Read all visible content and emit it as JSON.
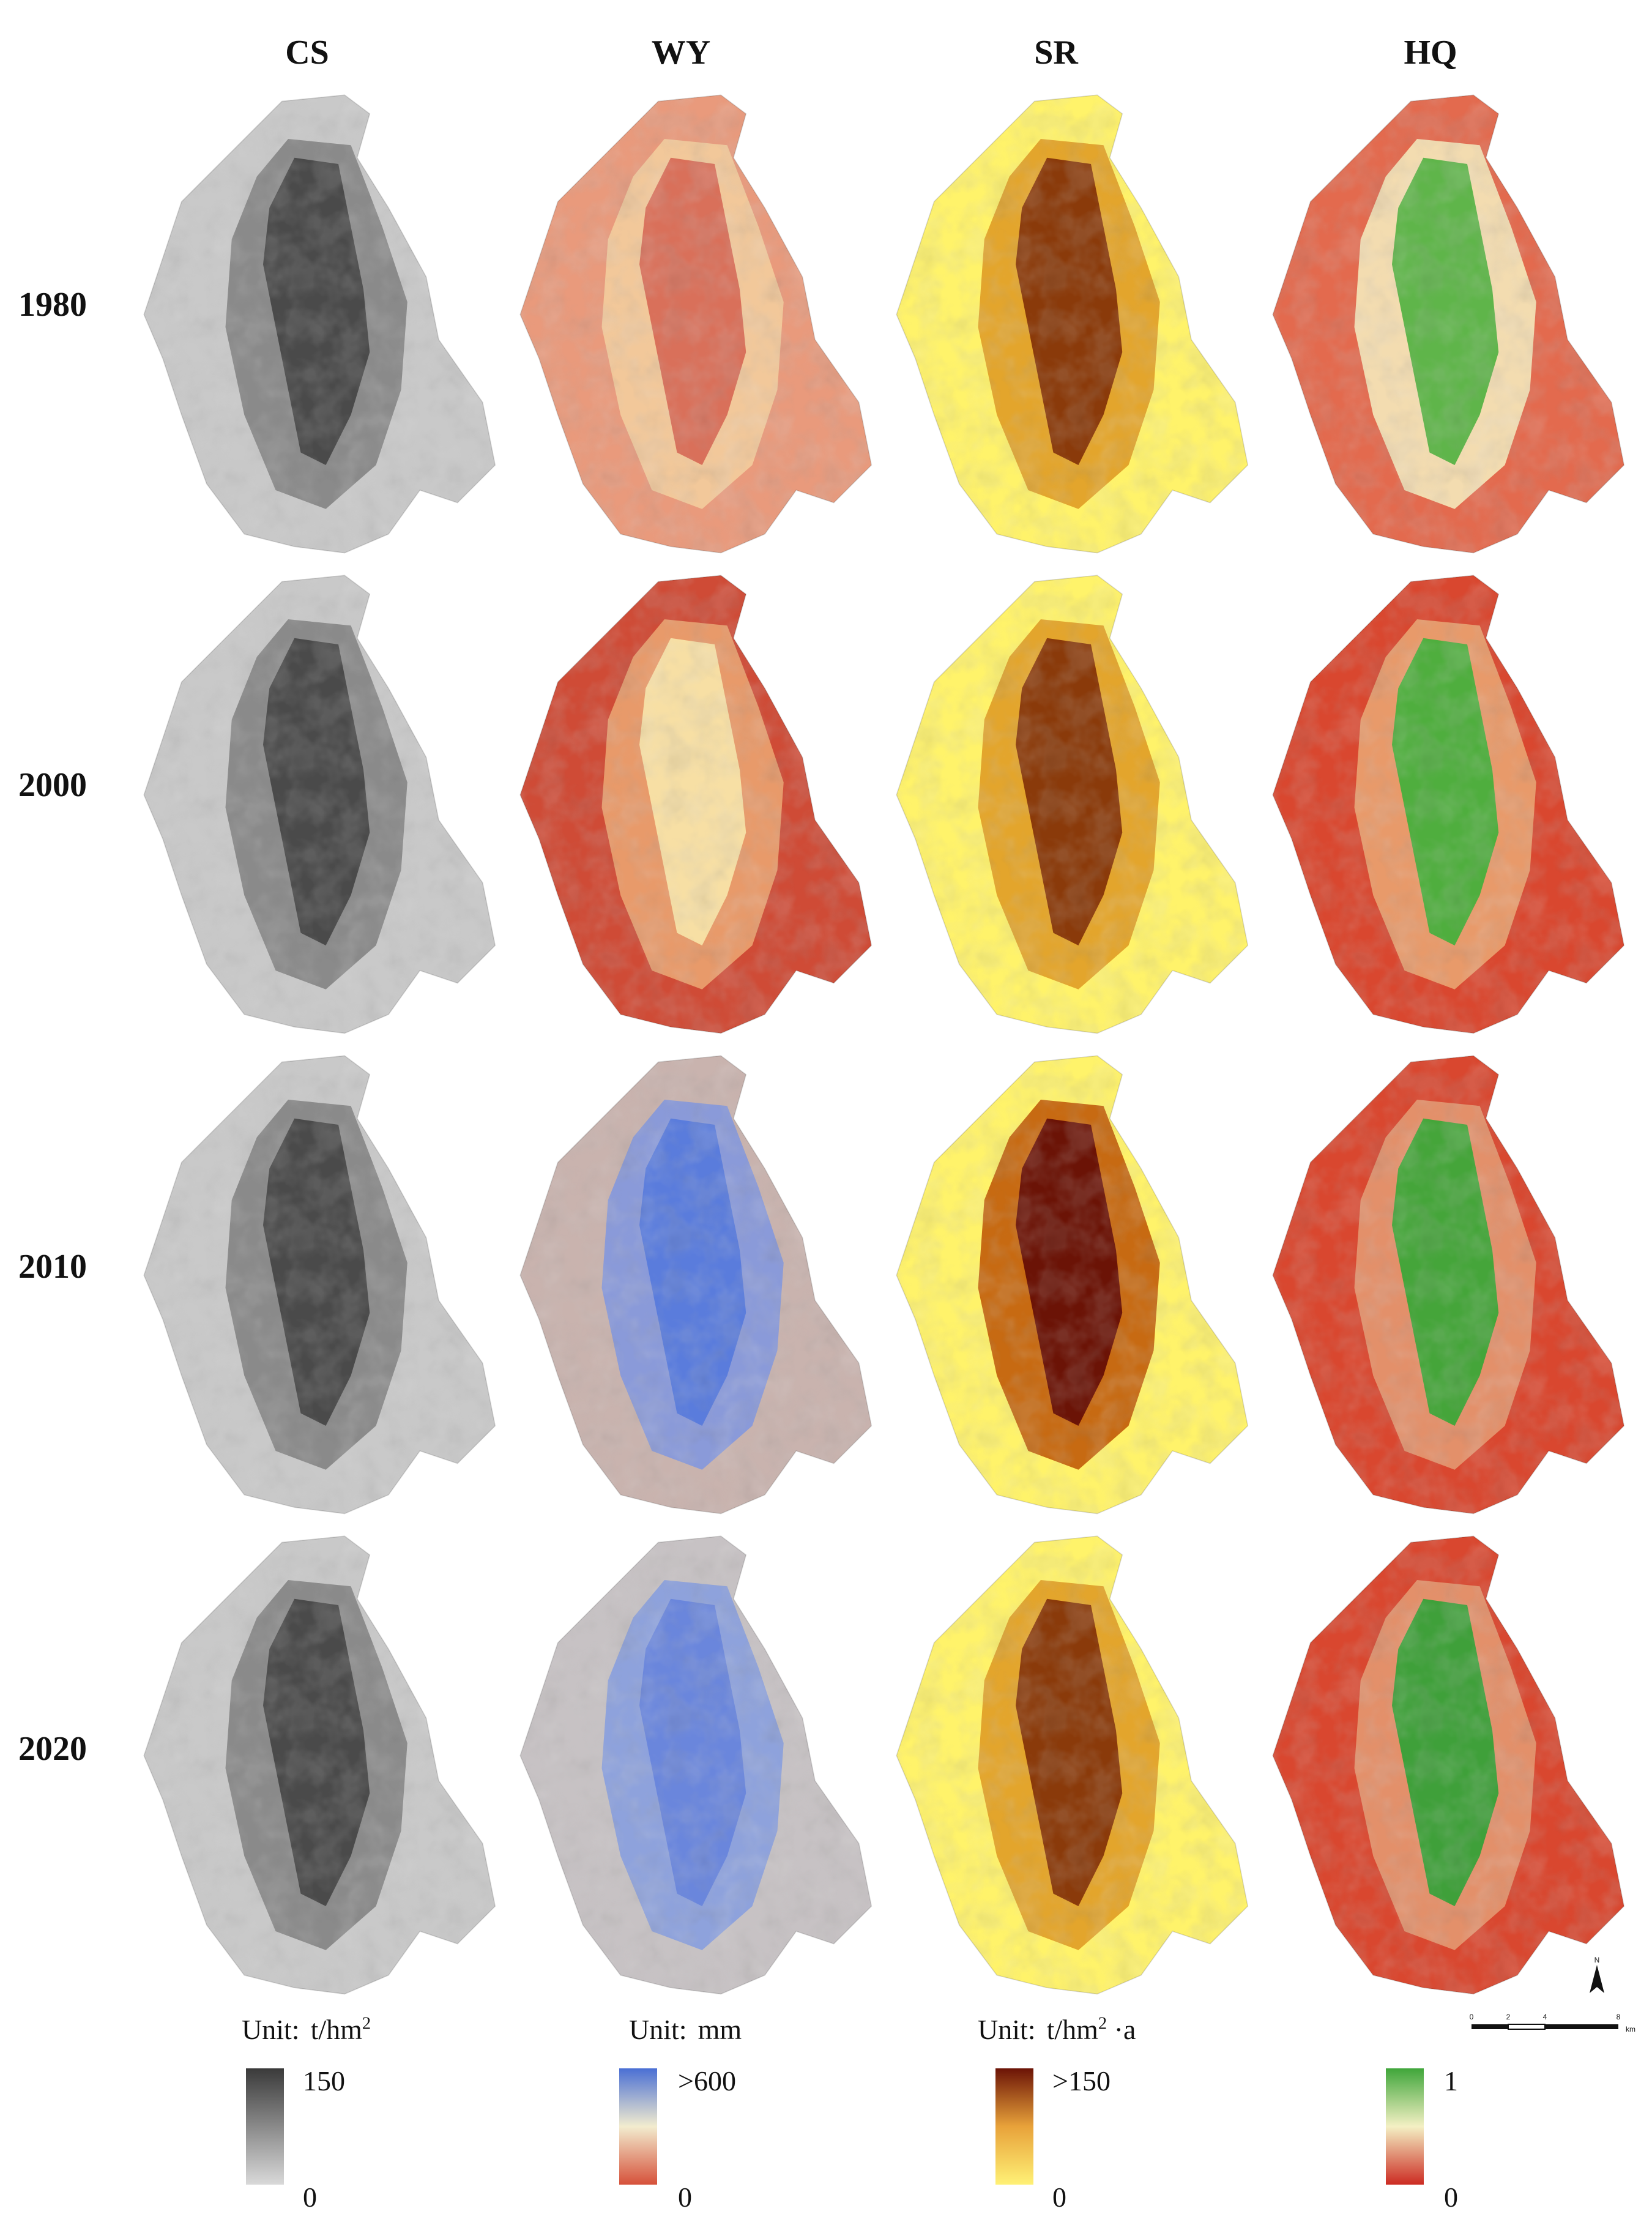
{
  "columns": [
    {
      "key": "cs",
      "label": "CS"
    },
    {
      "key": "wy",
      "label": "WY"
    },
    {
      "key": "sr",
      "label": "SR"
    },
    {
      "key": "hq",
      "label": "HQ"
    }
  ],
  "rows": [
    {
      "year": "1980"
    },
    {
      "year": "2000"
    },
    {
      "year": "2010"
    },
    {
      "year": "2020"
    }
  ],
  "legends": [
    {
      "key": "cs",
      "unit_label": "Unit:",
      "unit_text": "t/hm",
      "unit_sup": "2",
      "unit_tail": "",
      "max": "150",
      "min": "0",
      "color_top": "#3a3a3a",
      "color_bottom": "#d9d9d9"
    },
    {
      "key": "wy",
      "unit_label": "Unit:",
      "unit_text": "mm",
      "unit_sup": "",
      "unit_tail": "",
      "max": ">600",
      "min": "0",
      "color_top": "#4a6fd4",
      "color_mid": "#f2eccf",
      "color_bottom": "#d6513a"
    },
    {
      "key": "sr",
      "unit_label": "Unit:",
      "unit_text": "t/hm",
      "unit_sup": "2",
      "unit_tail": " ·a",
      "max": ">150",
      "min": "0",
      "color_top": "#6b1306",
      "color_mid": "#e8a23a",
      "color_bottom": "#fff176"
    },
    {
      "key": "hq",
      "unit_label": "",
      "unit_text": "",
      "unit_sup": "",
      "unit_tail": "",
      "max": "1",
      "min": "0",
      "color_top": "#3fa63a",
      "color_mid": "#f4f0c4",
      "color_bottom": "#cc2b22"
    }
  ],
  "map_colors": {
    "cs": {
      "base": "#c9c9c9",
      "mid": "#8a8a8a",
      "high": "#4a4a4a"
    },
    "wy": [
      {
        "base": "#e99a7c",
        "mid": "#f2c89a",
        "high": "#d9705a"
      },
      {
        "base": "#cf4b36",
        "mid": "#e89a6a",
        "high": "#f7dfa4"
      },
      {
        "base": "#c9b3ae",
        "mid": "#8a9ad9",
        "high": "#5a7cdc"
      },
      {
        "base": "#c7c2c4",
        "mid": "#8ea2dc",
        "high": "#6a86dc"
      }
    ],
    "sr": [
      {
        "base": "#fff36a",
        "mid": "#e3a52c",
        "high": "#8a3a0a"
      },
      {
        "base": "#fff36a",
        "mid": "#e3a52c",
        "high": "#8a3a0a"
      },
      {
        "base": "#fff36a",
        "mid": "#c76a12",
        "high": "#6b1306"
      },
      {
        "base": "#fff36a",
        "mid": "#e3a52c",
        "high": "#8a3a0a"
      }
    ],
    "hq": [
      {
        "base": "#e36a4e",
        "mid": "#f3dcb0",
        "high": "#5fb54a"
      },
      {
        "base": "#d9472f",
        "mid": "#e89a6a",
        "high": "#4fae3e"
      },
      {
        "base": "#d9472f",
        "mid": "#e3906a",
        "high": "#45a53a"
      },
      {
        "base": "#d9472f",
        "mid": "#e3906a",
        "high": "#3fa03a"
      }
    ]
  },
  "scale_bar": {
    "ticks": [
      "0",
      "2",
      "4",
      "8"
    ],
    "unit": "km"
  },
  "north_arrow": {
    "label": "N"
  }
}
